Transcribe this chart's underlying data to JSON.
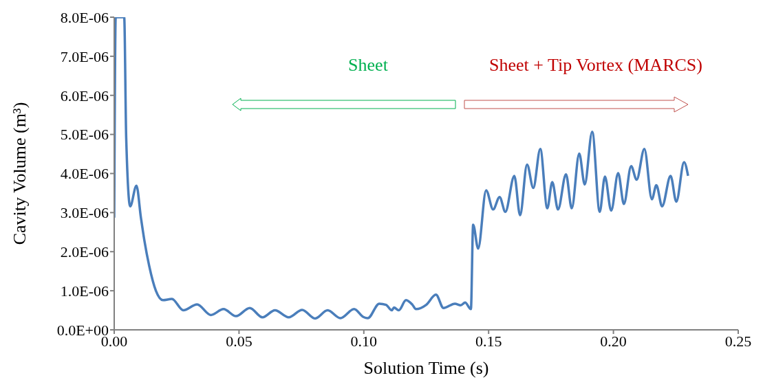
{
  "chart_data": {
    "type": "line",
    "xlabel": "Solution Time (s)",
    "ylabel": "Cavity Volume (m³)",
    "annotations": [
      "Sheet",
      "Sheet + Tip Vortex (MARCS)"
    ],
    "x": [
      0,
      0.0006,
      0.004,
      0.0048,
      0.0064,
      0.0089,
      0.0107,
      0.0121,
      0.014,
      0.0167,
      0.0195,
      0.0231,
      0.0277,
      0.0332,
      0.0387,
      0.0438,
      0.0488,
      0.0543,
      0.0594,
      0.0644,
      0.0699,
      0.0753,
      0.0805,
      0.0855,
      0.0906,
      0.0961,
      0.0998,
      0.1016,
      0.1062,
      0.1089,
      0.1112,
      0.1121,
      0.114,
      0.1169,
      0.1195,
      0.1209,
      0.125,
      0.1289,
      0.1319,
      0.1365,
      0.1388,
      0.1406,
      0.1429,
      0.1438,
      0.1458,
      0.149,
      0.1518,
      0.1544,
      0.1567,
      0.1603,
      0.1626,
      0.1654,
      0.1679,
      0.1707,
      0.1735,
      0.1755,
      0.1778,
      0.181,
      0.1833,
      0.1863,
      0.1885,
      0.1915,
      0.1945,
      0.1966,
      0.1991,
      0.2019,
      0.2042,
      0.2071,
      0.2093,
      0.2124,
      0.2154,
      0.2172,
      0.2195,
      0.2229,
      0.2252,
      0.2283,
      0.2299
    ],
    "series": [
      {
        "color": "#4a7ebb",
        "values": [
          2.87e-06,
          8e-06,
          8e-06,
          4.92e-06,
          3.16e-06,
          3.69e-06,
          2.87e-06,
          2.28e-06,
          1.64e-06,
          1e-06,
          7.6e-07,
          7.9e-07,
          5e-07,
          6.5e-07,
          3.8e-07,
          5.3e-07,
          3.5e-07,
          5.6e-07,
          3.2e-07,
          5e-07,
          3.2e-07,
          5.1e-07,
          2.9e-07,
          5e-07,
          3e-07,
          5.3e-07,
          3.3e-07,
          3e-07,
          6.7e-07,
          6.4e-07,
          5e-07,
          5.7e-07,
          5e-07,
          7.6e-07,
          6.4e-07,
          5.3e-07,
          6.4e-07,
          9e-07,
          5.6e-07,
          6.7e-07,
          6.3e-07,
          7e-07,
          5.3e-07,
          2.69e-06,
          2.08e-06,
          3.57e-06,
          3.08e-06,
          3.4e-06,
          3.02e-06,
          3.94e-06,
          2.93e-06,
          4.23e-06,
          3.63e-06,
          4.63e-06,
          3.11e-06,
          3.78e-06,
          3.08e-06,
          3.98e-06,
          3.11e-06,
          4.51e-06,
          3.72e-06,
          5.07e-06,
          3.02e-06,
          3.92e-06,
          3.05e-06,
          4.01e-06,
          3.22e-06,
          4.19e-06,
          3.84e-06,
          4.63e-06,
          3.34e-06,
          3.7e-06,
          3.16e-06,
          3.94e-06,
          3.28e-06,
          4.29e-06,
          3.94e-06
        ]
      }
    ],
    "xlim": [
      0,
      0.25
    ],
    "xticks": [
      {
        "value": 0,
        "label": "0.00"
      },
      {
        "value": 0.05,
        "label": "0.05"
      },
      {
        "value": 0.1,
        "label": "0.10"
      },
      {
        "value": 0.15,
        "label": "0.15"
      },
      {
        "value": 0.2,
        "label": "0.20"
      },
      {
        "value": 0.25,
        "label": "0.25"
      }
    ],
    "ylim": [
      0,
      8e-06
    ],
    "yticks": [
      {
        "value": 0,
        "label": "0.0E+00"
      },
      {
        "value": 1e-06,
        "label": "1.0E-06"
      },
      {
        "value": 2e-06,
        "label": "2.0E-06"
      },
      {
        "value": 3e-06,
        "label": "3.0E-06"
      },
      {
        "value": 4e-06,
        "label": "4.0E-06"
      },
      {
        "value": 5e-06,
        "label": "5.0E-06"
      },
      {
        "value": 6e-06,
        "label": "6.0E-06"
      },
      {
        "value": 7e-06,
        "label": "7.0E-06"
      },
      {
        "value": 8e-06,
        "label": "8.0E-06"
      }
    ],
    "grid": false,
    "legend": false,
    "marker": "none",
    "line_style": "solid"
  }
}
